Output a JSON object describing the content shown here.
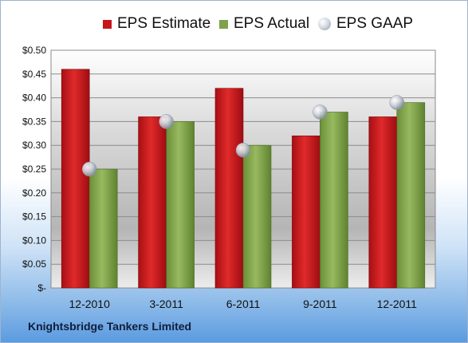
{
  "chart_data": {
    "type": "bar",
    "categories": [
      "12-2010",
      "3-2011",
      "6-2011",
      "9-2011",
      "12-2011"
    ],
    "series": [
      {
        "name": "EPS Estimate",
        "kind": "bar",
        "color": "#c8141b",
        "values": [
          0.46,
          0.36,
          0.42,
          0.32,
          0.36
        ]
      },
      {
        "name": "EPS Actual",
        "kind": "bar",
        "color": "#7fa34a",
        "values": [
          0.25,
          0.35,
          0.3,
          0.37,
          0.39
        ]
      },
      {
        "name": "EPS GAAP",
        "kind": "scatter",
        "color": "#b9c0cc",
        "values": [
          0.25,
          0.35,
          0.29,
          0.37,
          0.39
        ]
      }
    ],
    "yticks": [
      "$0.50",
      "$0.45",
      "$0.40",
      "$0.35",
      "$0.30",
      "$0.25",
      "$0.20",
      "$0.15",
      "$0.10",
      "$0.05",
      "$-"
    ],
    "ylim": [
      0,
      0.5
    ],
    "grid": true,
    "legend_position": "top"
  },
  "footer": {
    "company": "Knightsbridge Tankers Limited"
  }
}
